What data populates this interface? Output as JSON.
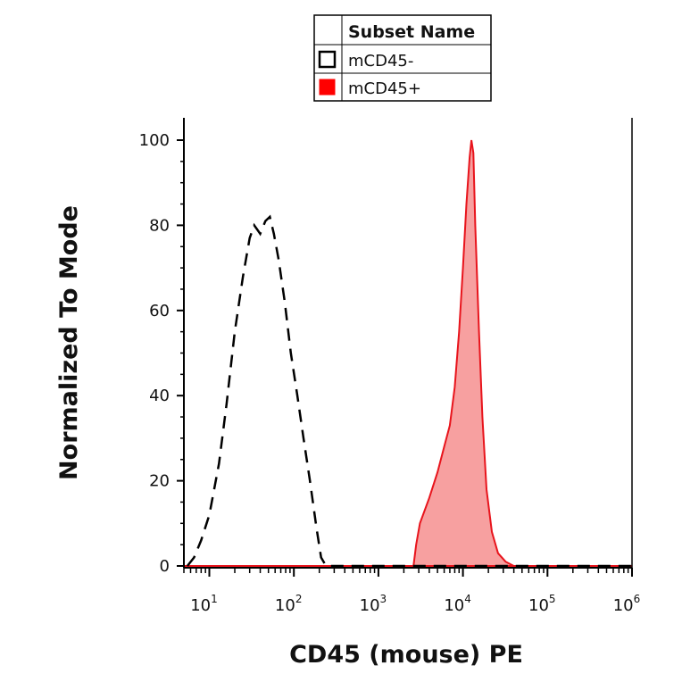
{
  "chart_data": {
    "type": "area",
    "xlabel": "CD45 (mouse) PE",
    "ylabel": "Normalized To Mode",
    "x_scale": "log",
    "xlim": [
      5,
      1000000
    ],
    "ylim": [
      0,
      105
    ],
    "x_ticks": [
      {
        "value": 10,
        "base": "10",
        "exp": "1"
      },
      {
        "value": 100,
        "base": "10",
        "exp": "2"
      },
      {
        "value": 1000,
        "base": "10",
        "exp": "3"
      },
      {
        "value": 10000,
        "base": "10",
        "exp": "4"
      },
      {
        "value": 100000,
        "base": "10",
        "exp": "5"
      },
      {
        "value": 1000000,
        "base": "10",
        "exp": "6"
      }
    ],
    "y_ticks": [
      0,
      20,
      40,
      60,
      80,
      100
    ],
    "legend": {
      "header": "Subset Name",
      "position": "top-center",
      "entries": [
        {
          "name": "mCD45-",
          "swatch_color": "#ffffff",
          "border_color": "#000000"
        },
        {
          "name": "mCD45+",
          "swatch_color": "#ff0000",
          "border_color": "#ff0000"
        }
      ]
    },
    "series": [
      {
        "name": "mCD45-",
        "style": "dashed",
        "color": "#000000",
        "fill": "none",
        "points": [
          [
            5.5,
            0
          ],
          [
            6.6,
            2
          ],
          [
            8,
            6
          ],
          [
            10,
            12
          ],
          [
            13,
            24
          ],
          [
            16,
            38
          ],
          [
            20,
            55
          ],
          [
            25,
            68
          ],
          [
            30,
            77
          ],
          [
            34,
            80
          ],
          [
            40,
            78
          ],
          [
            46,
            81
          ],
          [
            52,
            82
          ],
          [
            58,
            78
          ],
          [
            66,
            72
          ],
          [
            78,
            62
          ],
          [
            92,
            50
          ],
          [
            110,
            40
          ],
          [
            130,
            30
          ],
          [
            155,
            20
          ],
          [
            185,
            9
          ],
          [
            210,
            2
          ],
          [
            240,
            0
          ],
          [
            1000000,
            0
          ]
        ]
      },
      {
        "name": "mCD45+",
        "style": "solid",
        "color": "#e8141c",
        "fill": "#f7a0a0",
        "points": [
          [
            5,
            0
          ],
          [
            2600,
            0
          ],
          [
            2800,
            5
          ],
          [
            3100,
            10
          ],
          [
            4000,
            16
          ],
          [
            5000,
            22
          ],
          [
            6000,
            28
          ],
          [
            7000,
            33
          ],
          [
            8000,
            42
          ],
          [
            9000,
            55
          ],
          [
            10000,
            70
          ],
          [
            11000,
            85
          ],
          [
            12000,
            96
          ],
          [
            12600,
            100
          ],
          [
            13300,
            97
          ],
          [
            14000,
            80
          ],
          [
            15500,
            55
          ],
          [
            17000,
            35
          ],
          [
            19000,
            18
          ],
          [
            22000,
            8
          ],
          [
            26000,
            3
          ],
          [
            32000,
            1
          ],
          [
            40000,
            0
          ],
          [
            1000000,
            0
          ]
        ]
      }
    ]
  }
}
